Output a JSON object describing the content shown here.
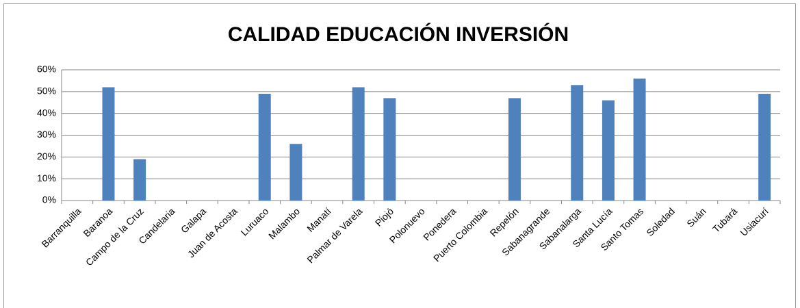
{
  "chart_data": {
    "type": "bar",
    "title": "CALIDAD EDUCACIÓN INVERSIÓN",
    "categories": [
      "Barranquilla",
      "Baranoa",
      "Campo de la Cruz",
      "Candelaria",
      "Galapa",
      "Juan de Acosta",
      "Luruaco",
      "Malambo",
      "Manatí",
      "Palmar de Varela",
      "Piojó",
      "Polonuevo",
      "Ponedera",
      "Puerto Colombia",
      "Repelón",
      "Sabanagrande",
      "Sabanalarga",
      "Santa Lucía",
      "Santo Tomas",
      "Soledad",
      "Suán",
      "Tubará",
      "Usiacurí"
    ],
    "values": [
      0,
      52,
      19,
      0,
      0,
      0,
      49,
      26,
      0,
      52,
      47,
      0,
      0,
      0,
      47,
      0,
      53,
      46,
      56,
      0,
      0,
      0,
      49
    ],
    "color": "#4f81bd",
    "ylim": [
      0,
      60
    ],
    "yticks": [
      {
        "value": 0,
        "label": "0%"
      },
      {
        "value": 10,
        "label": "10%"
      },
      {
        "value": 20,
        "label": "20%"
      },
      {
        "value": 30,
        "label": "30%"
      },
      {
        "value": 40,
        "label": "40%"
      },
      {
        "value": 50,
        "label": "50%"
      },
      {
        "value": 60,
        "label": "60%"
      }
    ],
    "grid": true
  }
}
